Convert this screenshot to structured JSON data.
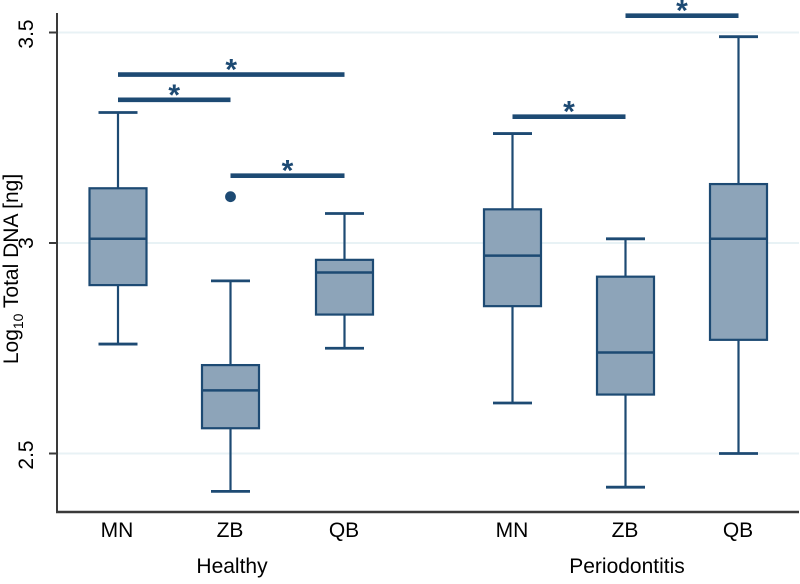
{
  "chart_data": {
    "type": "boxplot",
    "ylabel_parts": {
      "pre": "Log",
      "sub": "10",
      "post": " Total DNA [ng]"
    },
    "ylim": [
      2.36,
      3.55
    ],
    "grid": true,
    "yticks": [
      {
        "label": "3.5",
        "value": 3.5
      },
      {
        "label": "3",
        "value": 3.0
      },
      {
        "label": "2.5",
        "value": 2.5
      }
    ],
    "groups": [
      {
        "label": "Healthy",
        "boxes": [
          {
            "category": "MN",
            "whisker_low": 2.76,
            "q1": 2.9,
            "median": 3.01,
            "q3": 3.13,
            "whisker_high": 3.31,
            "outliers": []
          },
          {
            "category": "ZB",
            "whisker_low": 2.41,
            "q1": 2.56,
            "median": 2.65,
            "q3": 2.71,
            "whisker_high": 2.91,
            "outliers": [
              3.11
            ]
          },
          {
            "category": "QB",
            "whisker_low": 2.75,
            "q1": 2.83,
            "median": 2.93,
            "q3": 2.96,
            "whisker_high": 3.07,
            "outliers": []
          }
        ]
      },
      {
        "label": "Periodontitis",
        "boxes": [
          {
            "category": "MN",
            "whisker_low": 2.62,
            "q1": 2.85,
            "median": 2.97,
            "q3": 3.08,
            "whisker_high": 3.26,
            "outliers": []
          },
          {
            "category": "ZB",
            "whisker_low": 2.42,
            "q1": 2.64,
            "median": 2.74,
            "q3": 2.92,
            "whisker_high": 3.01,
            "outliers": []
          },
          {
            "category": "QB",
            "whisker_low": 2.5,
            "q1": 2.77,
            "median": 3.01,
            "q3": 3.14,
            "whisker_high": 3.49,
            "outliers": []
          }
        ]
      }
    ],
    "significance_bars": [
      {
        "group": 0,
        "from": "MN",
        "to": "QB",
        "y": 3.4,
        "label": "*"
      },
      {
        "group": 0,
        "from": "MN",
        "to": "ZB",
        "y": 3.34,
        "label": "*"
      },
      {
        "group": 0,
        "from": "ZB",
        "to": "QB",
        "y": 3.16,
        "label": "*"
      },
      {
        "group": 1,
        "from": "MN",
        "to": "ZB",
        "y": 3.3,
        "label": "*"
      },
      {
        "group": 1,
        "from": "ZB",
        "to": "QB",
        "y": 3.54,
        "label": "*"
      }
    ],
    "colors": {
      "box_fill": "#8da4b9",
      "line": "#1d4a73",
      "grid": "#e8f2f5",
      "axis": "#3a3a3a",
      "text": "#000000"
    }
  }
}
